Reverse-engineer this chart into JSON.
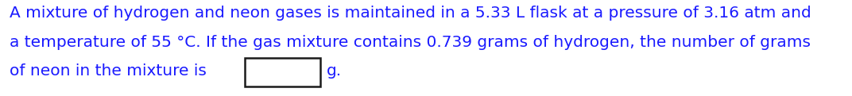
{
  "line1": "A mixture of hydrogen and neon gases is maintained in a 5.33 L flask at a pressure of 3.16 atm and",
  "line2": "a temperature of 55 °C. If the gas mixture contains 0.739 grams of hydrogen, the number of grams",
  "line3_before_box": "of neon in the mixture is ",
  "line3_after_box": "g.",
  "font_size": 14.5,
  "font_color": "#1a1aff",
  "background_color": "#ffffff",
  "fig_width": 10.72,
  "fig_height": 1.21,
  "dpi": 100
}
